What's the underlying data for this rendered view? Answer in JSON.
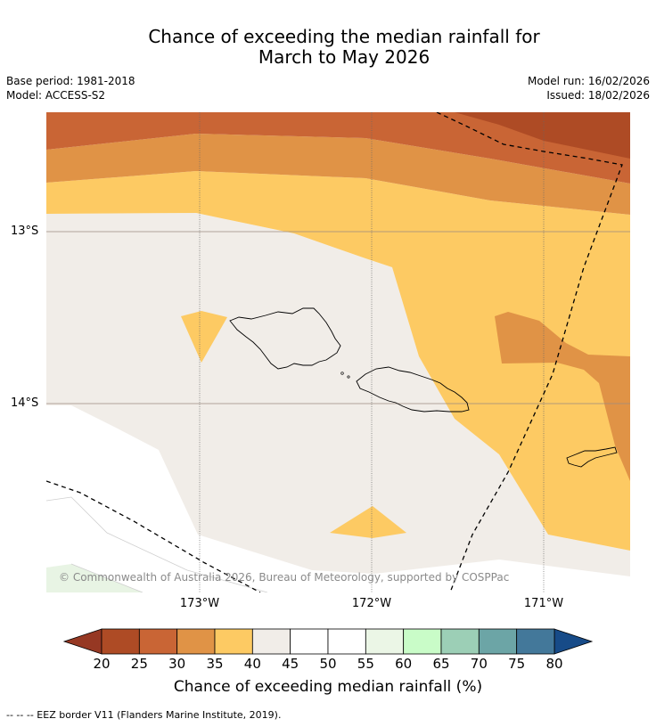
{
  "title_line1": "Chance of exceeding the median rainfall for",
  "title_line2": "March to May 2026",
  "base_period": "Base period: 1981-2018",
  "model": "Model: ACCESS-S2",
  "model_run": "Model run: 16/02/2026",
  "issued": "Issued: 18/02/2026",
  "copyright": "© Commonwealth of Australia 2026, Bureau of Meteorology, supported by COSPPac",
  "lon_labels": [
    "173°W",
    "172°W",
    "171°W"
  ],
  "lat_labels": [
    "13°S",
    "14°S"
  ],
  "colorbar": {
    "title": "Chance of exceeding median rainfall (%)",
    "ticks": [
      "20",
      "25",
      "30",
      "35",
      "40",
      "45",
      "50",
      "55",
      "60",
      "65",
      "70",
      "75",
      "80"
    ],
    "colors": [
      "#ae4b25",
      "#c96535",
      "#e09346",
      "#fdca63",
      "#f1ede8",
      "#ffffff",
      "#ffffff",
      "#ebf6e6",
      "#c9fcc8",
      "#9ccfb6",
      "#6ca5a6",
      "#43789a"
    ],
    "under_color": "#963823",
    "over_color": "#174b88"
  },
  "footnote": "--  --  -- EEZ border V11 (Flanders Marine Institute, 2019)."
}
